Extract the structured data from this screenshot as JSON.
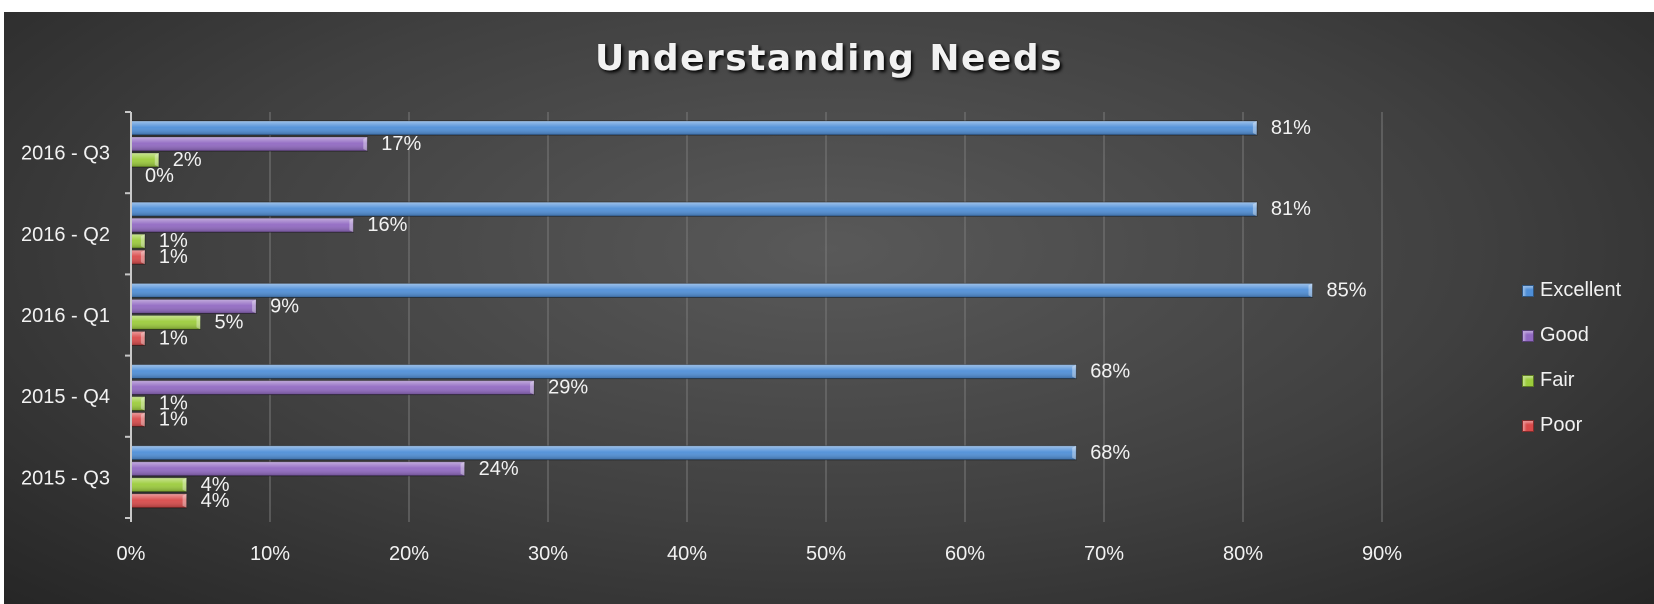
{
  "chart_data": {
    "type": "bar",
    "orientation": "horizontal",
    "title": "Understanding Needs",
    "categories": [
      "2016 - Q3",
      "2016 - Q2",
      "2016 - Q1",
      "2015 - Q4",
      "2015 - Q3"
    ],
    "series": [
      {
        "name": "Excellent",
        "color": "#4f8fd8",
        "values": [
          81,
          81,
          85,
          68,
          68
        ]
      },
      {
        "name": "Good",
        "color": "#9169c2",
        "values": [
          17,
          16,
          9,
          29,
          24
        ]
      },
      {
        "name": "Fair",
        "color": "#9ccc3c",
        "values": [
          2,
          1,
          5,
          1,
          4
        ]
      },
      {
        "name": "Poor",
        "color": "#d94a4a",
        "values": [
          0,
          1,
          1,
          1,
          4
        ]
      }
    ],
    "value_suffix": "%",
    "xlim": [
      0,
      90
    ],
    "xticks": [
      0,
      10,
      20,
      30,
      40,
      50,
      60,
      70,
      80,
      90
    ],
    "xtick_labels": [
      "0%",
      "10%",
      "20%",
      "30%",
      "40%",
      "50%",
      "60%",
      "70%",
      "80%",
      "90%"
    ],
    "xlabel": "",
    "ylabel": "",
    "grid": true,
    "legend_position": "right"
  }
}
